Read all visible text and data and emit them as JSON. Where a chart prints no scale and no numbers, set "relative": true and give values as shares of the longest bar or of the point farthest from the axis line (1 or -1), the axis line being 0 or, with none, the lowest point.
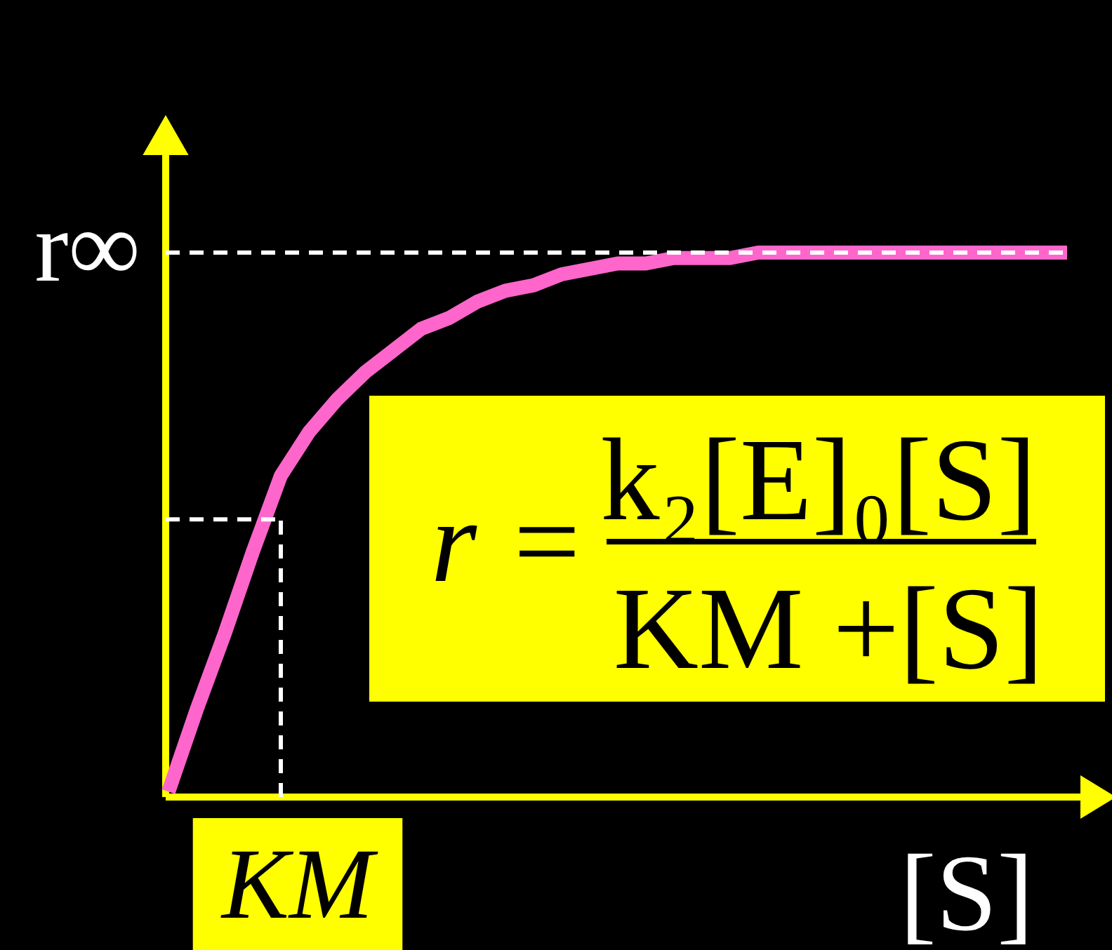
{
  "chart_data": {
    "type": "line",
    "relative": true,
    "xlabel": "[S]",
    "categories": [
      null,
      null,
      null,
      null,
      null,
      null,
      null,
      null,
      null,
      null,
      null,
      null,
      null,
      null,
      null,
      null,
      null,
      null,
      null,
      null,
      null,
      null,
      null,
      null,
      null,
      null,
      null,
      null,
      null,
      null,
      null,
      null,
      null
    ],
    "series": [
      {
        "color": "#ff66cc",
        "values": [
          0.01,
          0.16,
          0.3,
          0.45,
          0.59,
          0.67,
          0.73,
          0.78,
          0.82,
          0.86,
          0.88,
          0.91,
          0.93,
          0.94,
          0.96,
          0.97,
          0.98,
          0.98,
          0.99,
          0.99,
          0.99,
          1,
          1,
          1,
          1,
          1,
          1,
          1,
          1,
          1,
          1,
          1,
          1
        ]
      }
    ],
    "ref_lines": [
      {
        "axis": "y",
        "value": 1,
        "label": "r∞",
        "color": "#ffffff",
        "line_style": "dashed"
      },
      {
        "axis": "y",
        "value": 0.51,
        "color": "#ffffff",
        "line_style": "dashed"
      }
    ],
    "annotations": [
      "r =",
      "k₂[E]₀[S]",
      "KM +[S]",
      {
        "text": "KM"
      }
    ]
  }
}
